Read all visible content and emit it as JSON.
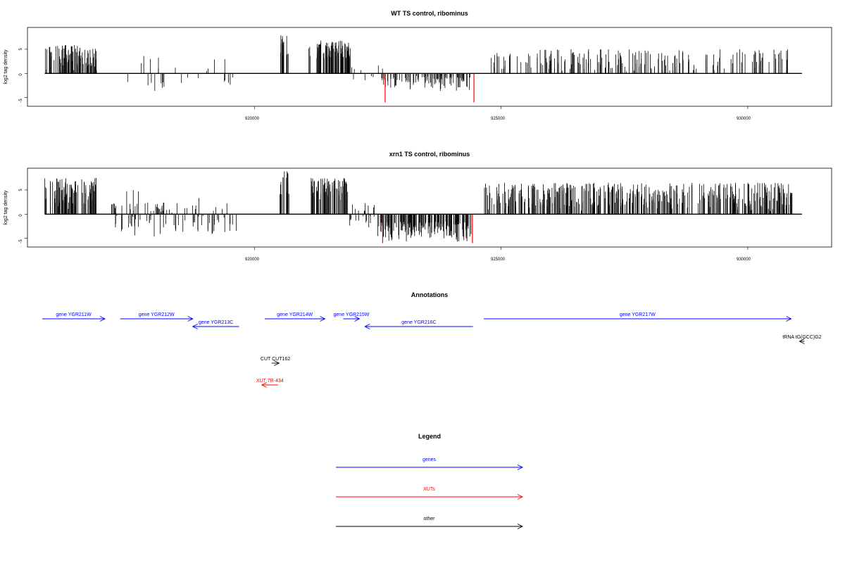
{
  "colors": {
    "positive_bar": "#000000",
    "negative_bar": "#000000",
    "highlight_bar": "#ff0000",
    "genes": "#0000ff",
    "XUTs": "#ff0000",
    "other": "#000000"
  },
  "tracks": [
    {
      "title": "WT TS control, ribominus",
      "ylabel": "log2 tag density",
      "yticks": [
        "-5",
        "0",
        "5"
      ],
      "xticks": [
        "920000",
        "925000",
        "930000"
      ]
    },
    {
      "title": "xrn1 TS control, ribominus",
      "ylabel": "log2 tag density",
      "yticks": [
        "-5",
        "0",
        "5"
      ],
      "xticks": [
        "920000",
        "925000",
        "930000"
      ]
    }
  ],
  "annotations": {
    "title": "Annotations",
    "features": [
      {
        "label": "gene YGR211W",
        "start": 915700,
        "end": 916970,
        "type": "genes",
        "strand": "+",
        "row": 0
      },
      {
        "label": "gene YGR212W",
        "start": 917280,
        "end": 918750,
        "type": "genes",
        "strand": "+",
        "row": 0
      },
      {
        "label": "gene YGR213C",
        "start": 918750,
        "end": 919690,
        "type": "genes",
        "strand": "-",
        "row": 1
      },
      {
        "label": "gene YGR214W",
        "start": 920210,
        "end": 921430,
        "type": "genes",
        "strand": "+",
        "row": 0
      },
      {
        "label": "gene YGR215W",
        "start": 921800,
        "end": 922130,
        "type": "genes",
        "strand": "+",
        "row": 0
      },
      {
        "label": "gene YGR216C",
        "start": 922240,
        "end": 924430,
        "type": "genes",
        "strand": "-",
        "row": 1
      },
      {
        "label": "gene YGR217W",
        "start": 924650,
        "end": 930880,
        "type": "genes",
        "strand": "+",
        "row": 0
      },
      {
        "label": "tRNA tG(GCC)G2",
        "start": 931050,
        "end": 931150,
        "type": "other",
        "strand": "-",
        "row": 2
      },
      {
        "label": "CUT CUT162",
        "start": 920350,
        "end": 920500,
        "type": "other",
        "strand": "+",
        "row": 3
      },
      {
        "label": "XUT 7R-434",
        "start": 920150,
        "end": 920480,
        "type": "XUTs",
        "strand": "-",
        "row": 4
      }
    ]
  },
  "legend": {
    "title": "Legend",
    "items": [
      {
        "label": "genes",
        "type": "genes"
      },
      {
        "label": "XUTs",
        "type": "XUTs"
      },
      {
        "label": "other",
        "type": "other"
      }
    ]
  },
  "chart_data": [
    {
      "type": "bar",
      "title": "WT TS control, ribominus",
      "xlabel": "",
      "ylabel": "log2 tag density",
      "xlim": [
        915400,
        931700
      ],
      "ylim": [
        -6.8,
        9.5
      ],
      "x_ticks": [
        920000,
        925000,
        930000
      ],
      "y_ticks": [
        -5,
        0,
        5
      ],
      "segments": [
        {
          "x": [
            915750,
            916800
          ],
          "y_range": [
            0.5,
            6
          ],
          "sign": 1,
          "density": 0.9
        },
        {
          "x": [
            917400,
            919800
          ],
          "y_range": [
            -4,
            2
          ],
          "sign": 0,
          "density": 0.12
        },
        {
          "x": [
            920500,
            920700
          ],
          "y_range": [
            3,
            8.3
          ],
          "sign": 1,
          "density": 0.9
        },
        {
          "x": [
            921100,
            921950
          ],
          "y_range": [
            3,
            6.8
          ],
          "sign": 1,
          "density": 1.0
        },
        {
          "x": [
            921950,
            922600
          ],
          "y_range": [
            -2,
            2
          ],
          "sign": 0,
          "density": 0.2
        },
        {
          "x": [
            922600,
            924400
          ],
          "y_range": [
            -3.8,
            -0.5
          ],
          "sign": -1,
          "density": 0.6
        },
        {
          "x": [
            924800,
            930900
          ],
          "y_range": [
            0.3,
            5
          ],
          "sign": 1,
          "density": 0.35
        }
      ],
      "highlight_bars": [
        {
          "x": 922650,
          "y": -6
        },
        {
          "x": 924450,
          "y": -6
        }
      ]
    },
    {
      "type": "bar",
      "title": "xrn1 TS control, ribominus",
      "xlabel": "",
      "ylabel": "log2 tag density",
      "xlim": [
        915400,
        931700
      ],
      "ylim": [
        -6.8,
        9.5
      ],
      "x_ticks": [
        920000,
        925000,
        930000
      ],
      "y_ticks": [
        -5,
        0,
        5
      ],
      "segments": [
        {
          "x": [
            915750,
            916800
          ],
          "y_range": [
            1,
            7.5
          ],
          "sign": 1,
          "density": 1.0
        },
        {
          "x": [
            917100,
            919700
          ],
          "y_range": [
            -5,
            5
          ],
          "sign": 0,
          "density": 0.45
        },
        {
          "x": [
            920500,
            920700
          ],
          "y_range": [
            3,
            9
          ],
          "sign": 1,
          "density": 0.9
        },
        {
          "x": [
            921150,
            921900
          ],
          "y_range": [
            3,
            7.5
          ],
          "sign": 1,
          "density": 1.0
        },
        {
          "x": [
            921900,
            922500
          ],
          "y_range": [
            -3,
            3
          ],
          "sign": 0,
          "density": 0.4
        },
        {
          "x": [
            922500,
            924400
          ],
          "y_range": [
            -5.8,
            -1.5
          ],
          "sign": -1,
          "density": 1.0
        },
        {
          "x": [
            924650,
            930900
          ],
          "y_range": [
            0.5,
            6.5
          ],
          "sign": 1,
          "density": 0.75
        }
      ],
      "highlight_bars": [
        {
          "x": 922600,
          "y": -6
        },
        {
          "x": 924420,
          "y": -6
        }
      ]
    }
  ]
}
